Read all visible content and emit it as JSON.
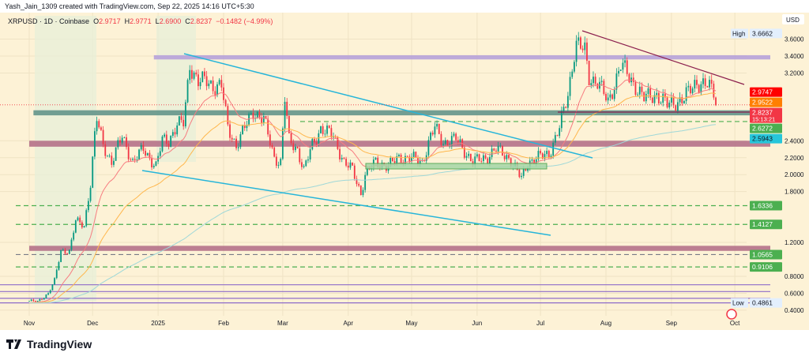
{
  "credit": "Yash_Jain_1309 created with TradingView.com, Sep 22, 2025 14:16 UTC+5:30",
  "legend": {
    "symbol": "XRPUSD · 1D · Coinbase",
    "o_label": "O",
    "o": "2.9717",
    "h_label": "H",
    "h": "2.9771",
    "l_label": "L",
    "l": "2.6900",
    "c_label": "C",
    "c": "2.8237",
    "change": "−0.1482 (−4.99%)"
  },
  "currency": "USD",
  "footer": {
    "brand": "TradingView",
    "logo_icon": "tradingview-logo-icon"
  },
  "colors": {
    "up": "#089981",
    "down": "#f23645",
    "background": "#fdf2d6"
  },
  "chart_data": {
    "type": "candlestick",
    "symbol": "XRPUSD",
    "interval": "1D",
    "ylim": [
      0.4,
      3.7
    ],
    "y_ticks": [
      "3.6000",
      "3.4000",
      "3.2000",
      "2.4000",
      "2.2000",
      "2.0000",
      "1.8000",
      "1.2000",
      "0.8000",
      "0.6000",
      "0.4000"
    ],
    "x_ticks": [
      "Nov",
      "Dec",
      "2025",
      "Feb",
      "Mar",
      "Apr",
      "May",
      "Jun",
      "Jul",
      "Aug",
      "Sep",
      "Oct"
    ],
    "x_tick_dates": [
      "2024-11-01",
      "2024-12-01",
      "2025-01-01",
      "2025-02-01",
      "2025-03-01",
      "2025-04-01",
      "2025-05-01",
      "2025-06-01",
      "2025-07-01",
      "2025-08-01",
      "2025-09-01",
      "2025-10-01"
    ],
    "closes": [
      [
        "2024-11-01",
        0.51
      ],
      [
        "2024-11-05",
        0.5
      ],
      [
        "2024-11-10",
        0.6
      ],
      [
        "2024-11-13",
        0.75
      ],
      [
        "2024-11-16",
        1.1
      ],
      [
        "2024-11-20",
        1.1
      ],
      [
        "2024-11-23",
        1.45
      ],
      [
        "2024-11-27",
        1.4
      ],
      [
        "2024-11-30",
        1.9
      ],
      [
        "2024-12-02",
        2.45
      ],
      [
        "2024-12-03",
        2.65
      ],
      [
        "2024-12-06",
        2.35
      ],
      [
        "2024-12-10",
        2.15
      ],
      [
        "2024-12-15",
        2.45
      ],
      [
        "2024-12-20",
        2.15
      ],
      [
        "2024-12-25",
        2.3
      ],
      [
        "2024-12-31",
        2.1
      ],
      [
        "2025-01-03",
        2.4
      ],
      [
        "2025-01-06",
        2.4
      ],
      [
        "2025-01-10",
        2.6
      ],
      [
        "2025-01-13",
        2.6
      ],
      [
        "2025-01-15",
        3.05
      ],
      [
        "2025-01-16",
        3.3
      ],
      [
        "2025-01-20",
        3.1
      ],
      [
        "2025-01-24",
        3.1
      ],
      [
        "2025-01-27",
        3.05
      ],
      [
        "2025-01-31",
        3.05
      ],
      [
        "2025-02-03",
        2.55
      ],
      [
        "2025-02-07",
        2.35
      ],
      [
        "2025-02-12",
        2.6
      ],
      [
        "2025-02-15",
        2.75
      ],
      [
        "2025-02-20",
        2.65
      ],
      [
        "2025-02-25",
        2.2
      ],
      [
        "2025-02-28",
        2.15
      ],
      [
        "2025-03-02",
        2.9
      ],
      [
        "2025-03-04",
        2.4
      ],
      [
        "2025-03-08",
        2.3
      ],
      [
        "2025-03-11",
        2.05
      ],
      [
        "2025-03-15",
        2.35
      ],
      [
        "2025-03-19",
        2.55
      ],
      [
        "2025-03-25",
        2.45
      ],
      [
        "2025-03-30",
        2.15
      ],
      [
        "2025-04-03",
        2.05
      ],
      [
        "2025-04-07",
        1.78
      ],
      [
        "2025-04-09",
        2.0
      ],
      [
        "2025-04-14",
        2.15
      ],
      [
        "2025-04-20",
        2.1
      ],
      [
        "2025-04-25",
        2.2
      ],
      [
        "2025-04-30",
        2.2
      ],
      [
        "2025-05-06",
        2.15
      ],
      [
        "2025-05-10",
        2.45
      ],
      [
        "2025-05-12",
        2.55
      ],
      [
        "2025-05-16",
        2.38
      ],
      [
        "2025-05-22",
        2.42
      ],
      [
        "2025-05-30",
        2.15
      ],
      [
        "2025-06-05",
        2.2
      ],
      [
        "2025-06-10",
        2.3
      ],
      [
        "2025-06-16",
        2.2
      ],
      [
        "2025-06-22",
        1.95
      ],
      [
        "2025-06-25",
        2.15
      ],
      [
        "2025-06-30",
        2.2
      ],
      [
        "2025-07-05",
        2.25
      ],
      [
        "2025-07-10",
        2.55
      ],
      [
        "2025-07-14",
        2.95
      ],
      [
        "2025-07-17",
        3.45
      ],
      [
        "2025-07-18",
        3.55
      ],
      [
        "2025-07-22",
        3.45
      ],
      [
        "2025-07-24",
        3.15
      ],
      [
        "2025-07-28",
        3.1
      ],
      [
        "2025-08-02",
        2.85
      ],
      [
        "2025-08-08",
        3.3
      ],
      [
        "2025-08-12",
        3.15
      ],
      [
        "2025-08-15",
        3.05
      ],
      [
        "2025-08-19",
        2.9
      ],
      [
        "2025-08-25",
        2.95
      ],
      [
        "2025-08-30",
        2.82
      ],
      [
        "2025-09-02",
        2.85
      ],
      [
        "2025-09-07",
        2.9
      ],
      [
        "2025-09-13",
        3.1
      ],
      [
        "2025-09-18",
        3.05
      ],
      [
        "2025-09-21",
        2.97
      ],
      [
        "2025-09-22",
        2.82
      ]
    ],
    "zones": [
      {
        "from": 3.36,
        "to": 3.41,
        "color": "#b39ddb",
        "start": "2024-12-30"
      },
      {
        "from": 2.7,
        "to": 2.76,
        "color": "#5b8f86",
        "start": "2024-11-03"
      },
      {
        "from": 2.33,
        "to": 2.4,
        "color": "#b06a85",
        "start": "2024-11-01"
      },
      {
        "from": 1.1,
        "to": 1.16,
        "color": "#b06a85",
        "start": "2024-11-01"
      }
    ],
    "dashed_levels": [
      {
        "price": 2.6272,
        "color": "#4caf50"
      },
      {
        "price": 1.6336,
        "color": "#4caf50"
      },
      {
        "price": 1.4127,
        "color": "#4caf50"
      },
      {
        "price": 1.0565,
        "color": "#787b86"
      },
      {
        "price": 0.9106,
        "color": "#4caf50"
      }
    ],
    "purple_levels": [
      0.7,
      0.62,
      0.54,
      0.4861
    ],
    "price_labels": [
      {
        "text": "3.6662",
        "tag": "High",
        "bg": "#e3effd",
        "fg": "#131722",
        "price": 3.6662
      },
      {
        "text": "2.9747",
        "bg": "#ff0000",
        "fg": "#ffffff",
        "price": 2.9747
      },
      {
        "text": "2.9522",
        "bg": "#ff7f00",
        "fg": "#ffffff",
        "price": 2.9522
      },
      {
        "text": "2.8237",
        "sub": "15:13:21",
        "bg": "#f23645",
        "fg": "#ffffff",
        "price": 2.8237
      },
      {
        "text": "2.6272",
        "bg": "#4caf50",
        "fg": "#ffffff",
        "price": 2.6272
      },
      {
        "text": "2.5943",
        "bg": "#26c6da",
        "fg": "#131722",
        "price": 2.5943
      },
      {
        "text": "1.6336",
        "bg": "#4caf50",
        "fg": "#ffffff",
        "price": 1.6336
      },
      {
        "text": "1.4127",
        "bg": "#4caf50",
        "fg": "#ffffff",
        "price": 1.4127
      },
      {
        "text": "1.0565",
        "bg": "#4caf50",
        "fg": "#ffffff",
        "price": 1.0565
      },
      {
        "text": "0.9106",
        "bg": "#4caf50",
        "fg": "#ffffff",
        "price": 0.9106
      },
      {
        "text": "0.4861",
        "tag": "Low",
        "bg": "#e3effd",
        "fg": "#131722",
        "price": 0.4861
      }
    ],
    "moving_averages": [
      {
        "period": 20,
        "color": "#f77c80"
      },
      {
        "period": 50,
        "color": "#ffb74d"
      },
      {
        "period": 200,
        "color": "#9fd8d8"
      }
    ]
  }
}
